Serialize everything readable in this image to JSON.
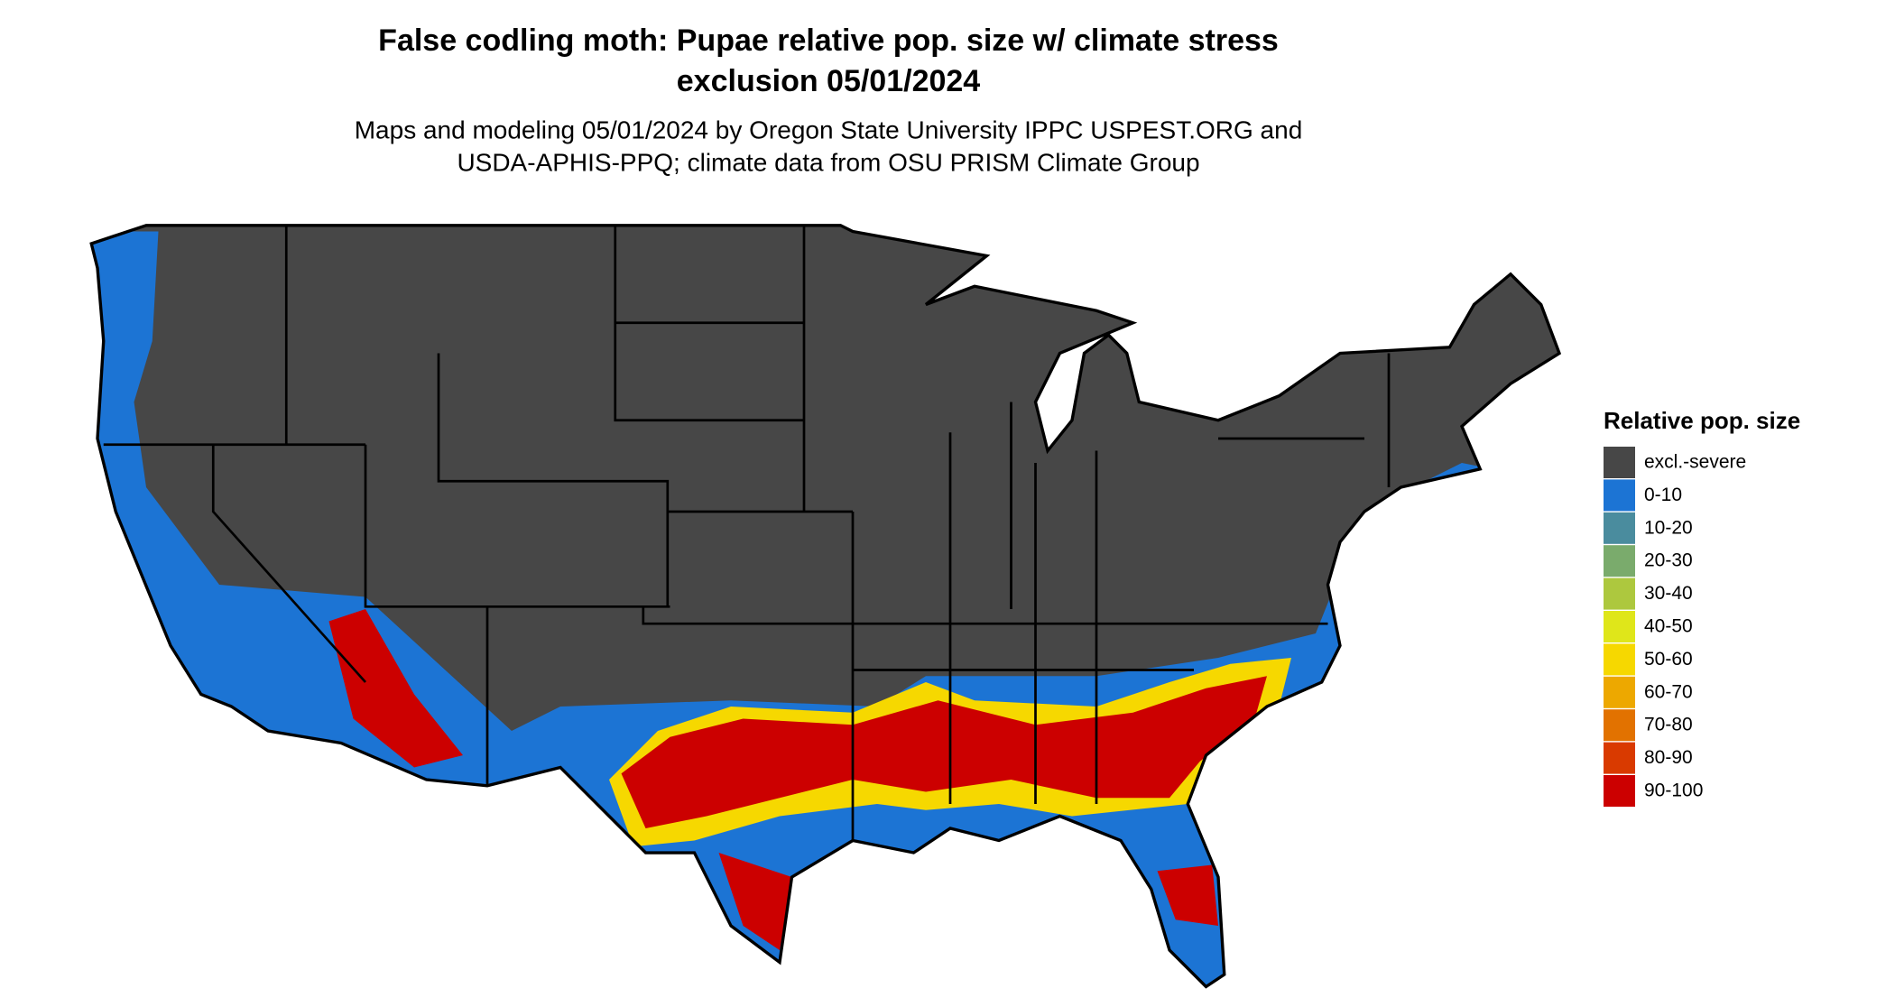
{
  "title": [
    "False codling moth: Pupae relative pop. size w/ climate stress",
    "exclusion 05/01/2024"
  ],
  "subtitle": [
    "Maps and modeling 05/01/2024 by Oregon State University IPPC USPEST.ORG and",
    "USDA-APHIS-PPQ; climate data from OSU PRISM Climate Group"
  ],
  "legend": {
    "title": "Relative pop. size",
    "items": [
      {
        "label": "excl.-severe",
        "color": "#474747"
      },
      {
        "label": "0-10",
        "color": "#1c74d4"
      },
      {
        "label": "10-20",
        "color": "#4a8c9e"
      },
      {
        "label": "20-30",
        "color": "#7aab6c"
      },
      {
        "label": "30-40",
        "color": "#adc83e"
      },
      {
        "label": "40-50",
        "color": "#dfe61a"
      },
      {
        "label": "50-60",
        "color": "#f6d800"
      },
      {
        "label": "60-70",
        "color": "#eda800"
      },
      {
        "label": "70-80",
        "color": "#e27200"
      },
      {
        "label": "80-90",
        "color": "#d93a00"
      },
      {
        "label": "90-100",
        "color": "#cc0000"
      }
    ]
  }
}
